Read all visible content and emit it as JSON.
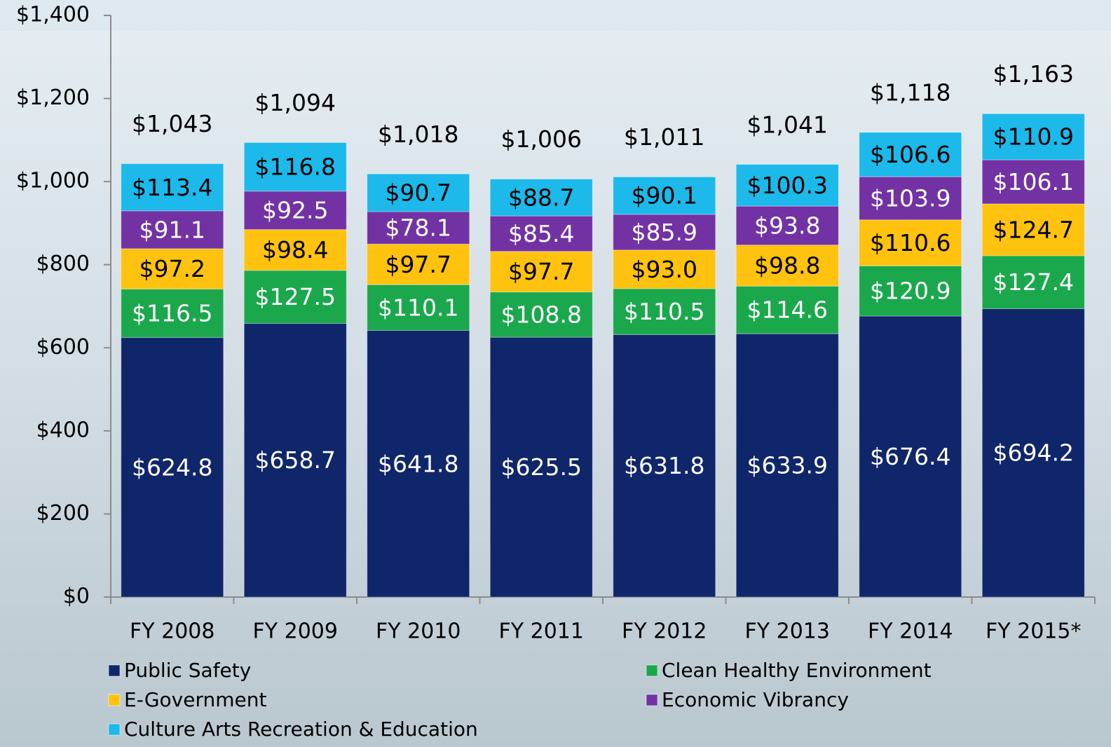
{
  "chart_data": {
    "type": "stacked_bar",
    "categories": [
      "FY 2008",
      "FY 2009",
      "FY 2010",
      "FY 2011",
      "FY 2012",
      "FY 2013",
      "FY 2014",
      "FY 2015*"
    ],
    "series": [
      {
        "name": "Public Safety",
        "color": "#10266b",
        "values": [
          624.8,
          658.7,
          641.8,
          625.5,
          631.8,
          633.9,
          676.4,
          694.2
        ],
        "value_labels": [
          "$624.8",
          "$658.7",
          "$641.8",
          "$625.5",
          "$631.8",
          "$633.9",
          "$676.4",
          "$694.2"
        ]
      },
      {
        "name": "Clean Healthy Environment",
        "color": "#1ba84c",
        "values": [
          116.5,
          127.5,
          110.1,
          108.8,
          110.5,
          114.6,
          120.9,
          127.4
        ],
        "value_labels": [
          "$116.5",
          "$127.5",
          "$110.1",
          "$108.8",
          "$110.5",
          "$114.6",
          "$120.9",
          "$127.4"
        ]
      },
      {
        "name": "E-Government",
        "color": "#ffc20e",
        "values": [
          97.2,
          98.4,
          97.7,
          97.7,
          93.0,
          98.8,
          110.6,
          124.7
        ],
        "value_labels": [
          "$97.2",
          "$98.4",
          "$97.7",
          "$97.7",
          "$93.0",
          "$98.8",
          "$110.6",
          "$124.7"
        ]
      },
      {
        "name": "Economic Vibrancy",
        "color": "#7232a4",
        "values": [
          91.1,
          92.5,
          78.1,
          85.4,
          85.9,
          93.8,
          103.9,
          106.1
        ],
        "value_labels": [
          "$91.1",
          "$92.5",
          "$78.1",
          "$85.4",
          "$85.9",
          "$93.8",
          "$103.9",
          "$106.1"
        ]
      },
      {
        "name": "Culture Arts Recreation & Education",
        "color": "#1cb9ea",
        "values": [
          113.4,
          116.8,
          90.7,
          88.7,
          90.1,
          100.3,
          106.6,
          110.9
        ],
        "value_labels": [
          "$113.4",
          "$116.8",
          "$90.7",
          "$88.7",
          "$90.1",
          "$100.3",
          "$106.6",
          "$110.9"
        ]
      }
    ],
    "totals": {
      "values": [
        1043,
        1094,
        1018,
        1006,
        1011,
        1041,
        1118,
        1163
      ],
      "value_labels": [
        "$1,043",
        "$1,094",
        "$1,018",
        "$1,006",
        "$1,011",
        "$1,041",
        "$1,118",
        "$1,163"
      ]
    },
    "ylim": [
      0,
      1400
    ],
    "yticks": [
      {
        "value": 0,
        "label": "$0"
      },
      {
        "value": 200,
        "label": "$200"
      },
      {
        "value": 400,
        "label": "$400"
      },
      {
        "value": 600,
        "label": "$600"
      },
      {
        "value": 800,
        "label": "$800"
      },
      {
        "value": 1000,
        "label": "$1,000"
      },
      {
        "value": 1200,
        "label": "$1,200"
      },
      {
        "value": 1400,
        "label": "$1,400"
      }
    ],
    "grid": false,
    "legend": "bottom"
  }
}
